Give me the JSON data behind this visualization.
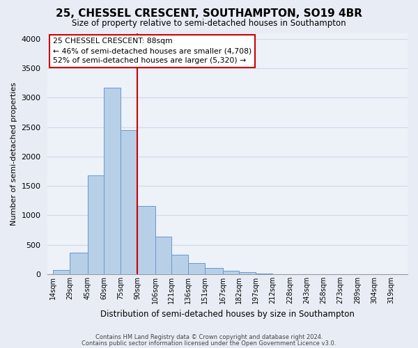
{
  "title": "25, CHESSEL CRESCENT, SOUTHAMPTON, SO19 4BR",
  "subtitle": "Size of property relative to semi-detached houses in Southampton",
  "xlabel": "Distribution of semi-detached houses by size in Southampton",
  "ylabel": "Number of semi-detached properties",
  "footnote1": "Contains HM Land Registry data © Crown copyright and database right 2024.",
  "footnote2": "Contains public sector information licensed under the Open Government Licence v3.0.",
  "bar_left_edges": [
    14,
    29,
    45,
    60,
    75,
    90,
    106,
    121,
    136,
    151,
    167,
    182,
    197,
    212,
    228,
    243,
    258,
    273,
    289,
    304
  ],
  "bar_heights": [
    70,
    370,
    1680,
    3170,
    2450,
    1160,
    635,
    330,
    185,
    110,
    60,
    30,
    15,
    5,
    5,
    3,
    2,
    1,
    1,
    0
  ],
  "bar_color": "#b8cfe8",
  "bar_edge_color": "#6699cc",
  "vline_x": 90,
  "vline_color": "#cc0000",
  "ylim": [
    0,
    4100
  ],
  "yticks": [
    0,
    500,
    1000,
    1500,
    2000,
    2500,
    3000,
    3500,
    4000
  ],
  "xtick_labels": [
    "14sqm",
    "29sqm",
    "45sqm",
    "60sqm",
    "75sqm",
    "90sqm",
    "106sqm",
    "121sqm",
    "136sqm",
    "151sqm",
    "167sqm",
    "182sqm",
    "197sqm",
    "212sqm",
    "228sqm",
    "243sqm",
    "258sqm",
    "273sqm",
    "289sqm",
    "304sqm",
    "319sqm"
  ],
  "xtick_positions": [
    14,
    29,
    45,
    60,
    75,
    90,
    106,
    121,
    136,
    151,
    167,
    182,
    197,
    212,
    228,
    243,
    258,
    273,
    289,
    304,
    319
  ],
  "annotation_title": "25 CHESSEL CRESCENT: 88sqm",
  "annotation_line1": "← 46% of semi-detached houses are smaller (4,708)",
  "annotation_line2": "52% of semi-detached houses are larger (5,320) →",
  "annotation_box_facecolor": "#ffffff",
  "annotation_box_edgecolor": "#cc0000",
  "grid_color": "#d0d8ea",
  "background_color": "#e8edf5",
  "plot_background_color": "#edf1f8"
}
